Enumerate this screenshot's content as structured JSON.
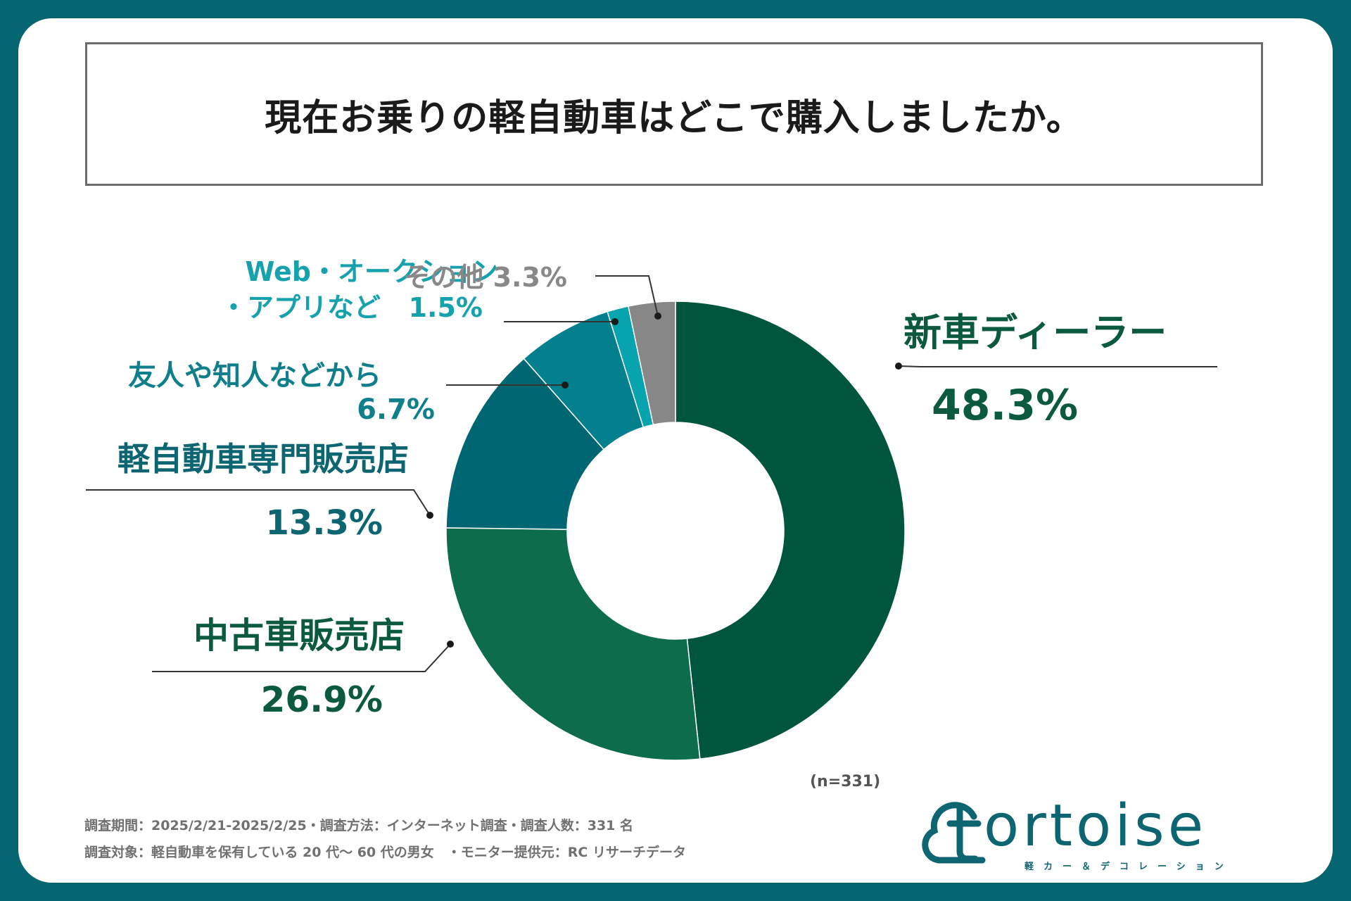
{
  "title": "現在お乗りの軽自動車はどこで購入しましたか。",
  "chart_data": {
    "type": "pie",
    "donut": true,
    "title": "現在お乗りの軽自動車はどこで購入しましたか。",
    "categories": [
      "新車ディーラー",
      "中古車販売店",
      "軽自動車専門販売店",
      "友人や知人などから",
      "Web・オークション・アプリなど",
      "その他"
    ],
    "values": [
      48.3,
      26.9,
      13.3,
      6.7,
      1.5,
      3.3
    ],
    "colors": [
      "#00563d",
      "#0d6c4c",
      "#006672",
      "#02808d",
      "#07a3ae",
      "#878787"
    ],
    "labels": [
      {
        "lines": [
          "新車ディーラー"
        ],
        "value": "48.3%",
        "color": "#0b5a40"
      },
      {
        "lines": [
          "中古車販売店"
        ],
        "value": "26.9%",
        "color": "#0b5a40"
      },
      {
        "lines": [
          "軽自動車専門販売店"
        ],
        "value": "13.3%",
        "color": "#0d6571"
      },
      {
        "lines": [
          "友人や知人などから"
        ],
        "value": "6.7%",
        "color": "#0f7f8b"
      },
      {
        "lines": [
          "Web・オークション",
          "・アプリなど"
        ],
        "value": "1.5%",
        "color": "#16a2ac"
      },
      {
        "lines": [
          "その他"
        ],
        "value": "3.3%",
        "color": "#888888"
      }
    ],
    "sample_size": "(n=331)"
  },
  "footer": {
    "note_line1": "調査期間：2025/2/21-2025/2/25・調査方法：インターネット調査・調査人数：331 名",
    "note_line2": "調査対象：軽自動車を保有している 20 代〜 60 代の男女　・モニター提供元：RC リサーチデータ"
  },
  "logo": {
    "word": "ortoise",
    "tagline": "軽カー＆デコレーション"
  }
}
